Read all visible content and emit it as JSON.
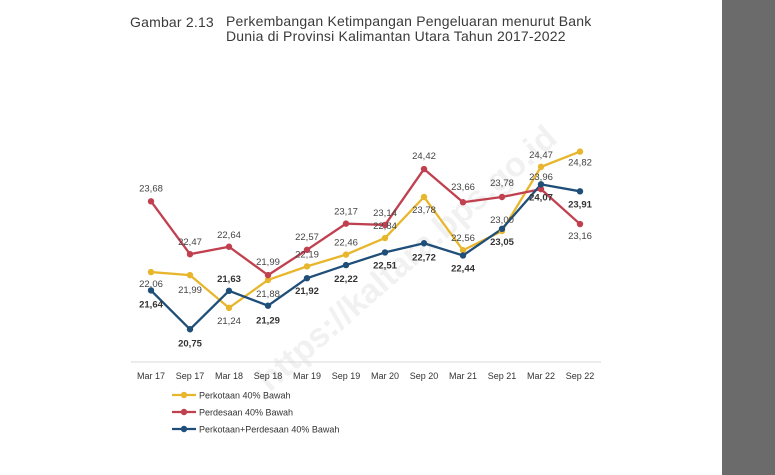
{
  "figure": {
    "number": "Gambar 2.13",
    "title": "Perkembangan Ketimpangan Pengeluaran menurut Bank Dunia di Provinsi Kalimantan Utara Tahun 2017-2022"
  },
  "watermark": "https://kaltara.bps.go.id",
  "colors": {
    "page": "#ffffff",
    "margin": "#6b6b6b",
    "axis": "#d9d9d9"
  },
  "chart_data": {
    "type": "line",
    "categories": [
      "Mar 17",
      "Sep 17",
      "Mar 18",
      "Sep 18",
      "Mar 19",
      "Sep 19",
      "Mar 20",
      "Sep 20",
      "Mar 21",
      "Sep 21",
      "Mar 22",
      "Sep 22"
    ],
    "series": [
      {
        "name": "Perkotaan 40% Bawah",
        "color": "#e8b62c",
        "bold_labels": false,
        "values": [
          22.06,
          21.99,
          21.24,
          21.88,
          22.19,
          22.46,
          22.84,
          23.78,
          22.56,
          23.0,
          24.47,
          24.82
        ],
        "labels": [
          "22,06",
          "21,99",
          "21,24",
          "21,88",
          "22,19",
          "22,46",
          "22,84",
          "23,78",
          "22,56",
          "23,00",
          "24,47",
          "24,82"
        ]
      },
      {
        "name": "Perdesaan 40% Bawah",
        "color": "#c0404f",
        "bold_labels": false,
        "values": [
          23.68,
          22.47,
          22.64,
          21.99,
          22.57,
          23.17,
          23.14,
          24.42,
          23.66,
          23.78,
          23.96,
          23.16
        ],
        "labels": [
          "23,68",
          "22,47",
          "22,64",
          "21,99",
          "22,57",
          "23,17",
          "23,14",
          "24,42",
          "23,66",
          "23,78",
          "23,96",
          "23,16"
        ]
      },
      {
        "name": "Perkotaan+Perdesaan 40% Bawah",
        "color": "#1f4e79",
        "bold_labels": true,
        "values": [
          21.64,
          20.75,
          21.63,
          21.29,
          21.92,
          22.22,
          22.51,
          22.72,
          22.44,
          23.05,
          24.07,
          23.91
        ],
        "labels": [
          "21,64",
          "20,75",
          "21,63",
          "21,29",
          "21,92",
          "22,22",
          "22,51",
          "22,72",
          "22,44",
          "23,05",
          "24,07",
          "23,91"
        ]
      }
    ],
    "ylim": [
      20.0,
      25.2
    ],
    "grid": false,
    "legend_position": "bottom-left"
  }
}
